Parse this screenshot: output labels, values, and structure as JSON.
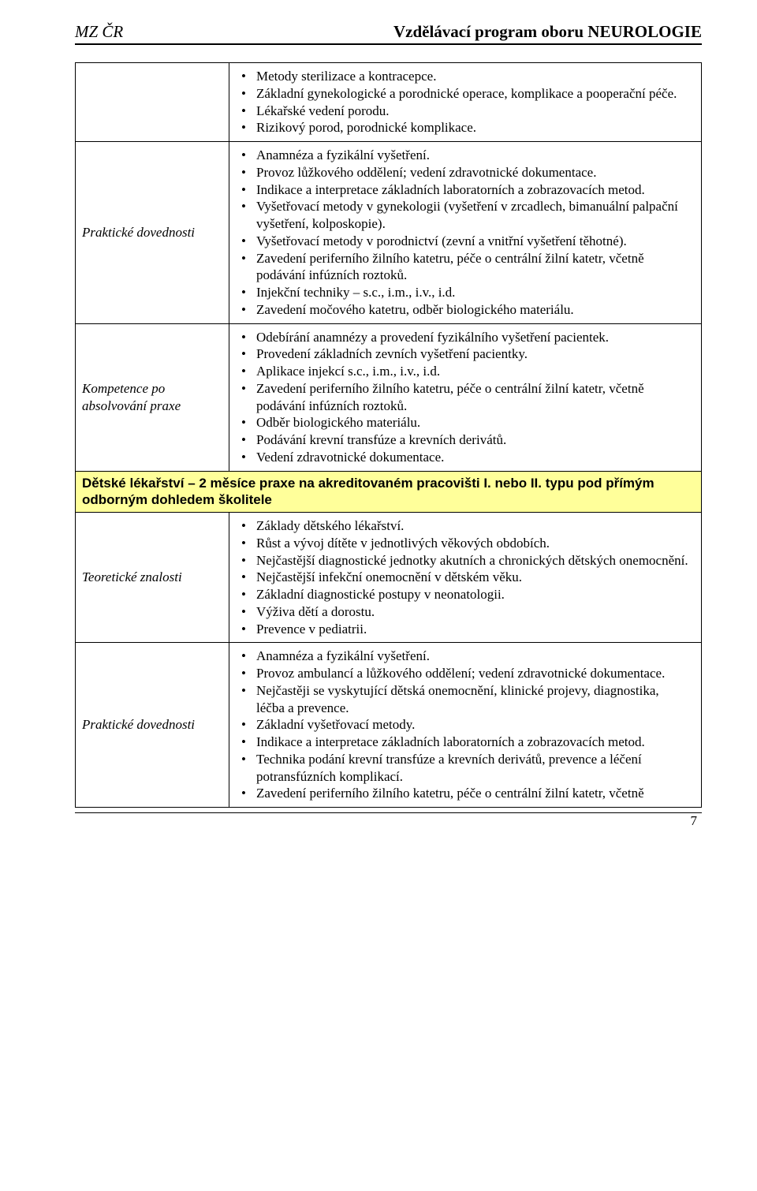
{
  "header": {
    "left": "MZ ČR",
    "right": "Vzdělávací program oboru NEUROLOGIE"
  },
  "page_number": "7",
  "rows": [
    {
      "label": "",
      "items": [
        "Metody sterilizace a kontracepce.",
        "Základní gynekologické a porodnické operace, komplikace a pooperační péče.",
        "Lékařské vedení porodu.",
        "Rizikový porod, porodnické komplikace."
      ]
    },
    {
      "label": "Praktické dovednosti",
      "items": [
        "Anamnéza a fyzikální vyšetření.",
        "Provoz lůžkového oddělení; vedení zdravotnické dokumentace.",
        "Indikace a interpretace základních laboratorních a zobrazovacích metod.",
        "Vyšetřovací metody v gynekologii (vyšetření v zrcadlech, bimanuální palpační vyšetření, kolposkopie).",
        "Vyšetřovací metody v porodnictví (zevní a vnitřní vyšetření těhotné).",
        "Zavedení periferního žilního katetru, péče o centrální žilní katetr, včetně podávání infúzních roztoků.",
        "Injekční techniky – s.c., i.m., i.v., i.d.",
        "Zavedení močového katetru, odběr biologického materiálu."
      ]
    },
    {
      "label": "Kompetence po absolvování praxe",
      "items": [
        "Odebírání anamnézy a provedení fyzikálního vyšetření pacientek.",
        "Provedení základních zevních vyšetření pacientky.",
        "Aplikace injekcí s.c., i.m., i.v., i.d.",
        "Zavedení periferního žilního katetru, péče o centrální žilní katetr, včetně podávání infúzních roztoků.",
        "Odběr biologického materiálu.",
        "Podávání krevní transfúze a krevních derivátů.",
        "Vedení zdravotnické dokumentace."
      ]
    }
  ],
  "section_header": "Dětské lékařství – 2 měsíce praxe na akreditovaném pracovišti I. nebo II. typu pod přímým odborným dohledem školitele",
  "rows2": [
    {
      "label": "Teoretické znalosti",
      "items": [
        "Základy dětského lékařství.",
        "Růst a vývoj dítěte v jednotlivých věkových obdobích.",
        "Nejčastější diagnostické jednotky akutních a chronických dětských onemocnění.",
        "Nejčastější infekční onemocnění v dětském věku.",
        "Základní diagnostické postupy v neonatologii.",
        "Výživa dětí a dorostu.",
        "Prevence v pediatrii."
      ]
    },
    {
      "label": "Praktické dovednosti",
      "items": [
        "Anamnéza a fyzikální vyšetření.",
        "Provoz ambulancí a lůžkového oddělení; vedení zdravotnické dokumentace.",
        "Nejčastěji se vyskytující dětská onemocnění, klinické projevy, diagnostika, léčba a prevence.",
        "Základní vyšetřovací metody.",
        "Indikace a interpretace základních laboratorních a zobrazovacích metod.",
        "Technika podání krevní transfúze a krevních derivátů, prevence a léčení potransfúzních komplikací.",
        "Zavedení periferního žilního katetru, péče o centrální žilní katetr, včetně"
      ]
    }
  ]
}
